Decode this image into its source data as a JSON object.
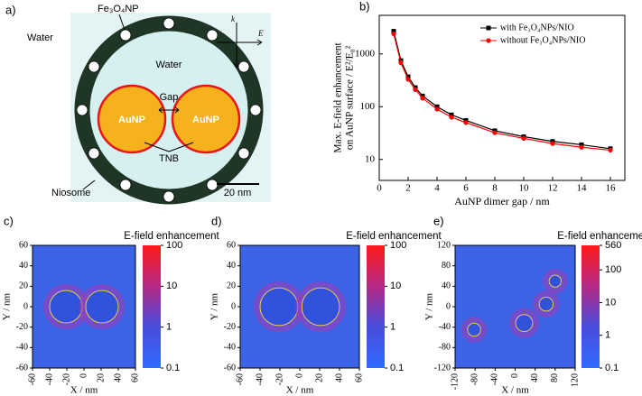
{
  "diagram": {
    "panel": "a)",
    "np_label": "Fe₃O₄NP",
    "outer_water": "Water",
    "inner_water": "Water",
    "gap": "Gap",
    "particle_left": "AuNP",
    "particle_right": "AuNP",
    "tnb": "TNB",
    "niosome": "Niosome",
    "scale_bar": "20 nm",
    "k_label": "k",
    "e_label": "E"
  },
  "chart_data": [
    {
      "type": "line",
      "panel": "b)",
      "xlabel": "AuNP dimer gap / nm",
      "ylabel": [
        "Max. E-field enhancement",
        "on AuNP surface / E²/E₀²"
      ],
      "x": [
        1,
        1.5,
        2,
        2.5,
        3,
        4,
        5,
        6,
        8,
        10,
        12,
        14,
        16
      ],
      "series": [
        {
          "name": "with Fe₃O₄NPs/NIO",
          "color": "#000000",
          "marker": "square",
          "values": [
            2700,
            750,
            370,
            230,
            160,
            100,
            70,
            55,
            35,
            27,
            22,
            19,
            16
          ]
        },
        {
          "name": "without Fe₃O₄NPs/NIO",
          "color": "#ff0000",
          "marker": "circle",
          "values": [
            2400,
            680,
            330,
            210,
            145,
            90,
            63,
            50,
            32,
            25,
            20,
            17,
            15
          ]
        }
      ],
      "xlim": [
        0,
        17
      ],
      "xticks": [
        0,
        2,
        4,
        6,
        8,
        10,
        12,
        14,
        16
      ],
      "ylim": [
        4,
        5400
      ],
      "yticks": [
        10,
        100,
        1000
      ],
      "log_y": true,
      "legend": "upper right"
    },
    {
      "type": "heatmap",
      "panel": "c)",
      "xlabel": "X / nm",
      "ylabel": "Y / nm",
      "colorbar_label": "E-field enhancement",
      "xlim": [
        -60,
        60
      ],
      "xticks": [
        -60,
        -40,
        -20,
        0,
        20,
        40,
        60
      ],
      "ylim": [
        -60,
        60
      ],
      "yticks": [
        -60,
        -40,
        -20,
        0,
        20,
        40,
        60
      ],
      "clim": [
        0.1,
        100
      ],
      "cticks": [
        0.1,
        1,
        10,
        100
      ],
      "particles": {
        "x": [
          -21,
          21
        ],
        "y": [
          0,
          0
        ],
        "r": [
          19,
          19
        ]
      }
    },
    {
      "type": "heatmap",
      "panel": "d)",
      "xlabel": "X / nm",
      "ylabel": "Y / nm",
      "colorbar_label": "E-field enhancement",
      "xlim": [
        -60,
        60
      ],
      "xticks": [
        -60,
        -40,
        -20,
        0,
        20,
        40,
        60
      ],
      "ylim": [
        -60,
        60
      ],
      "yticks": [
        -60,
        -40,
        -20,
        0,
        20,
        40,
        60
      ],
      "clim": [
        0.1,
        100
      ],
      "cticks": [
        0.1,
        1,
        10,
        100
      ],
      "particles": {
        "x": [
          -21,
          21
        ],
        "y": [
          0,
          0
        ],
        "r": [
          19,
          19
        ]
      }
    },
    {
      "type": "heatmap",
      "panel": "e)",
      "xlabel": "X / nm",
      "ylabel": "Y / nm",
      "colorbar_label": "E-field enhancement",
      "xlim": [
        -120,
        120
      ],
      "xticks": [
        -120,
        -80,
        -40,
        0,
        40,
        80,
        120
      ],
      "ylim": [
        -120,
        120
      ],
      "yticks": [
        -120,
        -80,
        -40,
        0,
        40,
        80,
        120
      ],
      "clim": [
        0.1,
        560
      ],
      "cticks": [
        0.1,
        1,
        10,
        100,
        560
      ],
      "particles": {
        "x": [
          -82,
          18,
          62,
          80
        ],
        "y": [
          -45,
          -32,
          5,
          50
        ],
        "r": [
          13,
          17,
          14,
          12
        ]
      }
    }
  ]
}
